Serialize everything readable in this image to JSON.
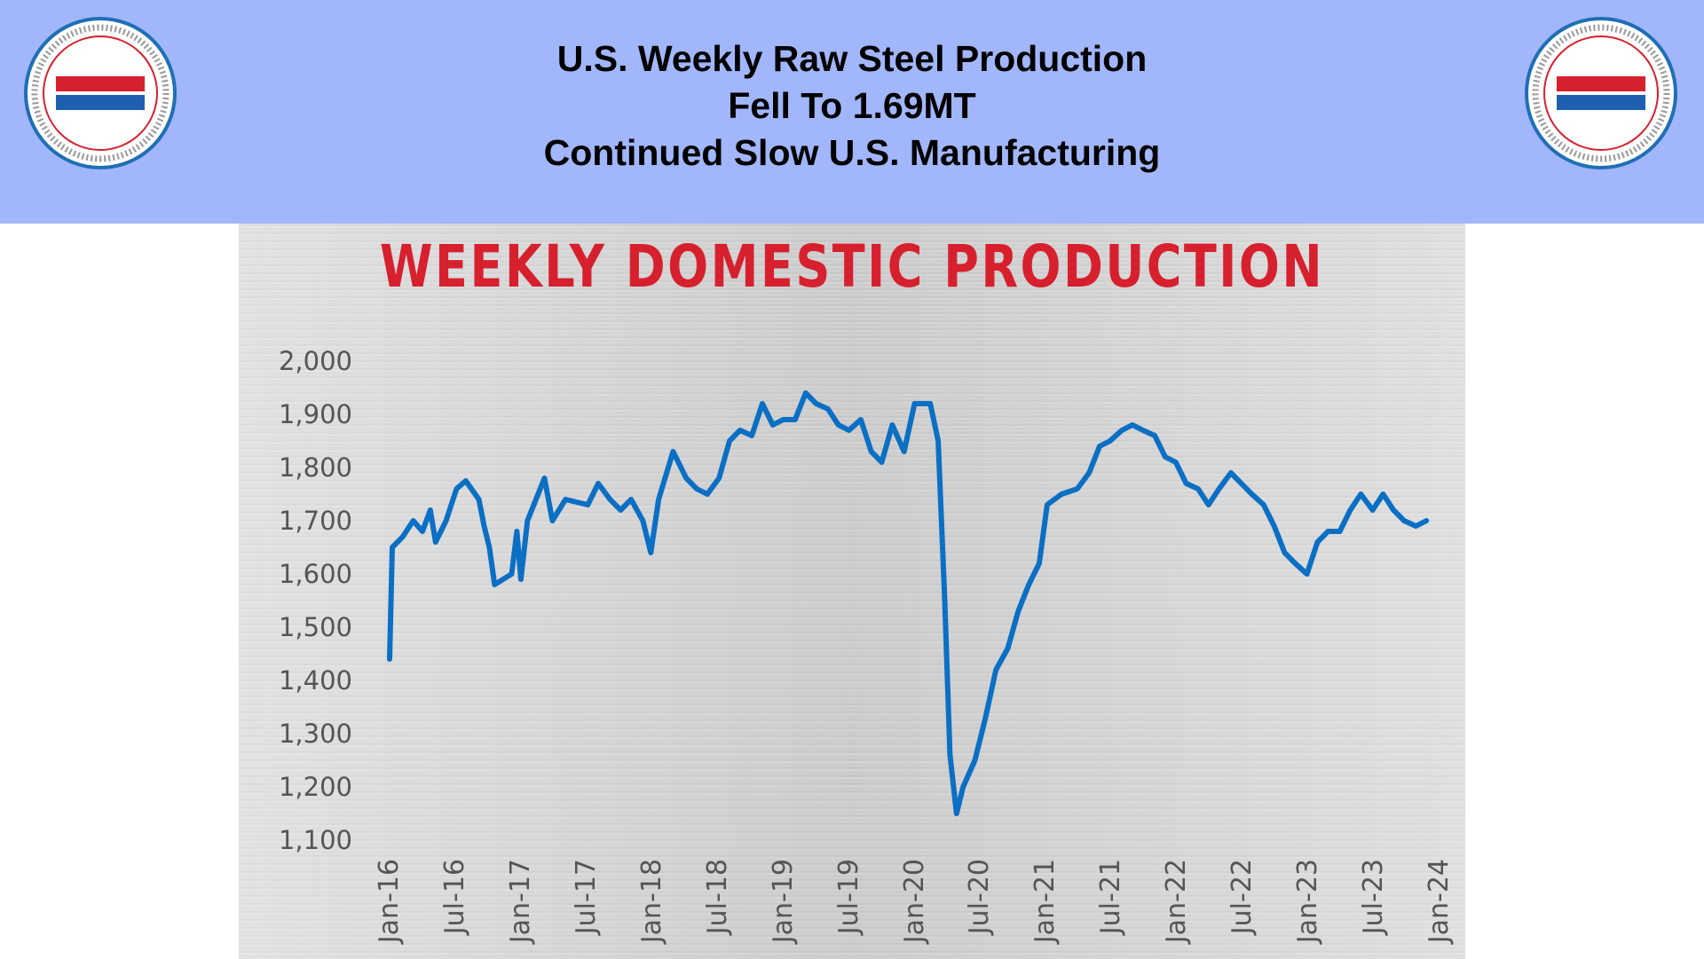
{
  "header": {
    "lines": [
      "U.S. Weekly Raw Steel Production",
      "Fell To 1.69MT",
      "Continued Slow U.S. Manufacturing"
    ],
    "logo": {
      "name": "BENLEE",
      "ring_text": "TARPS ★ ROLL-OFFS ★ DUMPS ★ LUGGERS ★ BENLEE.COM ★ 1-734-722-8100 ★ PARTS"
    },
    "bg_color": "#a2b6fb"
  },
  "chart_data": {
    "type": "line",
    "title": "WEEKLY DOMESTIC PRODUCTION",
    "xlabel": "",
    "ylabel": "",
    "ylim": [
      1100,
      2000
    ],
    "xlim": [
      2016.0,
      2024.0
    ],
    "grid": false,
    "line_color": "#0b6fc4",
    "title_color": "#d7202e",
    "yticks": [
      2000,
      1900,
      1800,
      1700,
      1600,
      1500,
      1400,
      1300,
      1200,
      1100
    ],
    "ytick_labels": [
      "2,000",
      "1,900",
      "1,800",
      "1,700",
      "1,600",
      "1,500",
      "1,400",
      "1,300",
      "1,200",
      "1,100"
    ],
    "xticks": [
      2016.0,
      2016.5,
      2017.0,
      2017.5,
      2018.0,
      2018.5,
      2019.0,
      2019.5,
      2020.0,
      2020.5,
      2021.0,
      2021.5,
      2022.0,
      2022.5,
      2023.0,
      2023.5,
      2024.0
    ],
    "xtick_labels": [
      "Jan-16",
      "Jul-16",
      "Jan-17",
      "Jul-17",
      "Jan-18",
      "Jul-18",
      "Jan-19",
      "Jul-19",
      "Jan-20",
      "Jul-20",
      "Jan-21",
      "Jul-21",
      "Jan-22",
      "Jul-22",
      "Jan-23",
      "Jul-23",
      "Jan-24"
    ],
    "series": [
      {
        "name": "Weekly domestic production",
        "x": [
          2016.0,
          2016.02,
          2016.1,
          2016.18,
          2016.25,
          2016.31,
          2016.35,
          2016.43,
          2016.51,
          2016.58,
          2016.68,
          2016.72,
          2016.76,
          2016.8,
          2016.93,
          2016.97,
          2017.0,
          2017.05,
          2017.18,
          2017.24,
          2017.34,
          2017.51,
          2017.59,
          2017.68,
          2017.76,
          2017.84,
          2017.93,
          2017.99,
          2018.05,
          2018.16,
          2018.26,
          2018.34,
          2018.42,
          2018.51,
          2018.59,
          2018.67,
          2018.76,
          2018.84,
          2018.92,
          2019.0,
          2019.09,
          2019.17,
          2019.25,
          2019.34,
          2019.42,
          2019.5,
          2019.59,
          2019.67,
          2019.75,
          2019.83,
          2019.92,
          2020.0,
          2020.12,
          2020.18,
          2020.23,
          2020.27,
          2020.32,
          2020.37,
          2020.46,
          2020.54,
          2020.62,
          2020.71,
          2020.79,
          2020.87,
          2020.95,
          2021.01,
          2021.12,
          2021.24,
          2021.33,
          2021.41,
          2021.49,
          2021.58,
          2021.66,
          2021.74,
          2021.83,
          2021.91,
          2021.99,
          2022.07,
          2022.16,
          2022.24,
          2022.32,
          2022.41,
          2022.49,
          2022.57,
          2022.66,
          2022.74,
          2022.82,
          2022.9,
          2022.99,
          2023.07,
          2023.15,
          2023.24,
          2023.32,
          2023.4,
          2023.49,
          2023.57,
          2023.65,
          2023.73,
          2023.82,
          2023.9
        ],
        "values": [
          1440,
          1650,
          1670,
          1700,
          1680,
          1720,
          1660,
          1700,
          1760,
          1775,
          1740,
          1690,
          1650,
          1580,
          1600,
          1680,
          1590,
          1700,
          1780,
          1700,
          1740,
          1730,
          1770,
          1740,
          1720,
          1740,
          1700,
          1640,
          1740,
          1830,
          1780,
          1760,
          1750,
          1780,
          1850,
          1870,
          1860,
          1920,
          1880,
          1890,
          1890,
          1940,
          1920,
          1910,
          1880,
          1870,
          1890,
          1830,
          1810,
          1880,
          1830,
          1920,
          1920,
          1850,
          1550,
          1260,
          1150,
          1200,
          1250,
          1330,
          1420,
          1460,
          1530,
          1580,
          1620,
          1730,
          1750,
          1760,
          1790,
          1840,
          1850,
          1870,
          1880,
          1870,
          1860,
          1820,
          1810,
          1770,
          1760,
          1730,
          1760,
          1790,
          1770,
          1750,
          1730,
          1690,
          1640,
          1620,
          1600,
          1660,
          1680,
          1680,
          1720,
          1750,
          1720,
          1750,
          1720,
          1700,
          1690,
          1700
        ]
      }
    ]
  }
}
